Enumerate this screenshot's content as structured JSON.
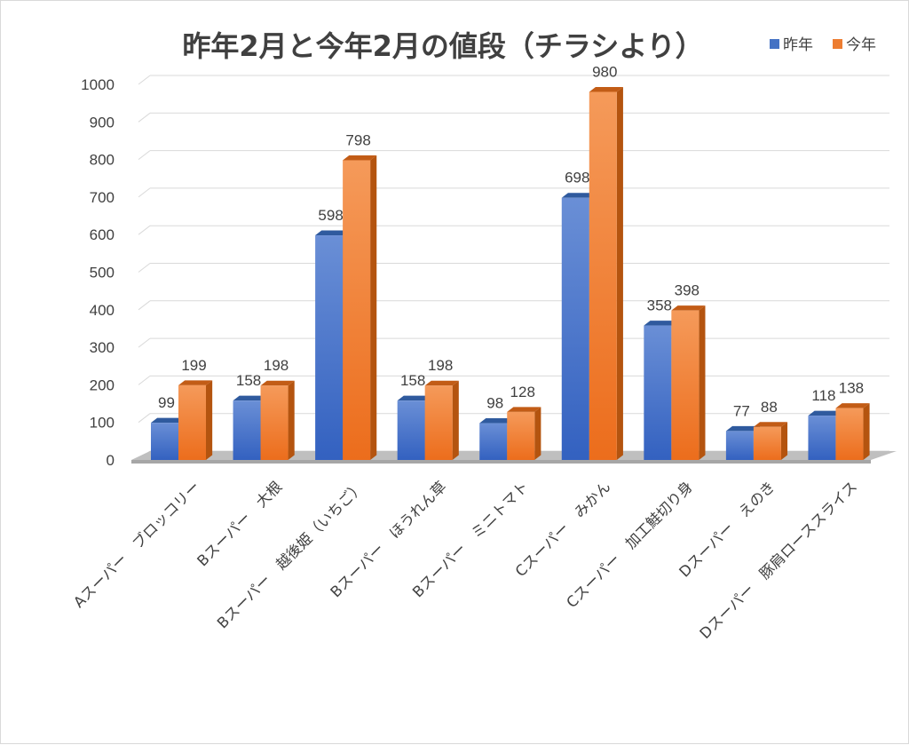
{
  "chart_data": {
    "type": "bar",
    "title": "昨年2月と今年2月の値段（チラシより）",
    "categories": [
      "Aスーパー　ブロッコリー",
      "Bスーパー　大根",
      "Bスーパー　越後姫（いちご）",
      "Bスーパー　ほうれん草",
      "Bスーパー　ミニトマト",
      "Cスーパー　みかん",
      "Cスーパー　加工鮭切り身",
      "Dスーパー　えのき",
      "Dスーパー　豚肩ローススライス"
    ],
    "series": [
      {
        "name": "昨年",
        "values": [
          99,
          158,
          598,
          158,
          98,
          698,
          358,
          77,
          118
        ],
        "color": "#4472C4"
      },
      {
        "name": "今年",
        "values": [
          199,
          198,
          798,
          198,
          128,
          980,
          398,
          88,
          138
        ],
        "color": "#ED7D31"
      }
    ],
    "ylim": [
      0,
      1000
    ],
    "yticks": [
      0,
      100,
      200,
      300,
      400,
      500,
      600,
      700,
      800,
      900,
      1000
    ],
    "xlabel": "",
    "ylabel": "",
    "grid": true,
    "legend": "top-right",
    "style": "3d-clustered-column"
  }
}
